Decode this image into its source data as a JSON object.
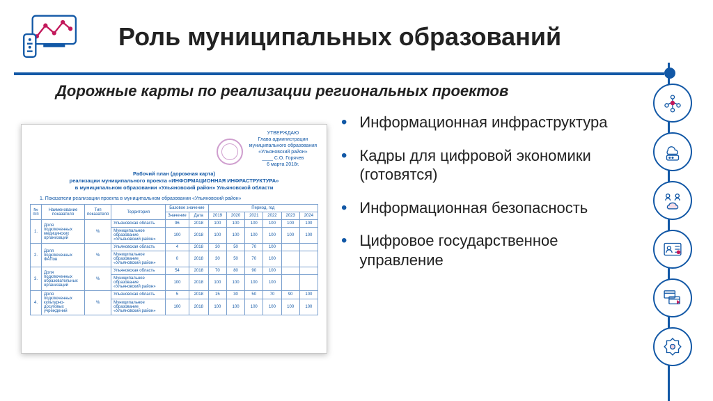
{
  "colors": {
    "accent": "#1258a6",
    "text": "#222222",
    "stamp": "#b05fae",
    "border": "#7aa0ce"
  },
  "title": "Роль муниципальных образований",
  "subtitle": "Дорожные карты по реализации региональных проектов",
  "bullets": [
    "Информационная инфраструктура",
    "Кадры для цифровой экономики (готовятся)",
    "Информационная безопасность",
    "Цифровое государственное управление"
  ],
  "document": {
    "approve": {
      "l1": "УТВЕРЖДАЮ",
      "l2": "Глава администрации",
      "l3": "муниципального образования",
      "l4": "«Ульяновский район»",
      "l5": "____ С.О. Горячев",
      "l6": "6 марта 2018г."
    },
    "doc_title_l1": "Рабочий план (дорожная карта)",
    "doc_title_l2": "реализации муниципального проекта «ИНФОРМАЦИОННАЯ ИНФРАСТРУКТУРА»",
    "doc_title_l3": "в муниципальном образовании «Ульяновский район» Ульяновской области",
    "section1": "1. Показатели реализации проекта в муниципальном образовании «Ульяновский район»",
    "headers": {
      "num": "№ п/п",
      "name": "Наименование показателя",
      "type": "Тип показателя",
      "terr": "Территория",
      "base": "Базовое значение",
      "base_val": "Значение",
      "base_date": "Дата",
      "period": "Период, год",
      "y2019": "2019",
      "y2020": "2020",
      "y2021": "2021",
      "y2022": "2022",
      "y2023": "2023",
      "y2024": "2024"
    },
    "rows": [
      {
        "n": "1.",
        "name": "Доля подключенных медицинских организаций",
        "type": "%",
        "terr": "Ульяновская область",
        "bv": "96",
        "bd": "2018",
        "v": [
          "100",
          "100",
          "100",
          "100",
          "100",
          "100"
        ]
      },
      {
        "n": "",
        "name": "",
        "type": "",
        "terr": "Муниципальное образование «Ульяновский район»",
        "bv": "100",
        "bd": "2018",
        "v": [
          "100",
          "100",
          "100",
          "100",
          "100",
          "100"
        ]
      },
      {
        "n": "2.",
        "name": "Доля подключенных ФАПов",
        "type": "%",
        "terr": "Ульяновская область",
        "bv": "4",
        "bd": "2018",
        "v": [
          "30",
          "50",
          "70",
          "100",
          "",
          ""
        ]
      },
      {
        "n": "",
        "name": "",
        "type": "",
        "terr": "Муниципальное образование «Ульяновский район»",
        "bv": "0",
        "bd": "2018",
        "v": [
          "30",
          "50",
          "70",
          "100",
          "",
          ""
        ]
      },
      {
        "n": "3.",
        "name": "Доля подключенных образовательных организаций",
        "type": "%",
        "terr": "Ульяновская область",
        "bv": "54",
        "bd": "2018",
        "v": [
          "70",
          "80",
          "90",
          "100",
          "",
          ""
        ]
      },
      {
        "n": "",
        "name": "",
        "type": "",
        "terr": "Муниципальное образование «Ульяновский район»",
        "bv": "100",
        "bd": "2018",
        "v": [
          "100",
          "100",
          "100",
          "100",
          "",
          ""
        ]
      },
      {
        "n": "4.",
        "name": "Доля подключенных культурно-досуговых учреждений",
        "type": "%",
        "terr": "Ульяновская область",
        "bv": "5",
        "bd": "2018",
        "v": [
          "15",
          "30",
          "50",
          "70",
          "90",
          "100"
        ]
      },
      {
        "n": "",
        "name": "",
        "type": "",
        "terr": "Муниципальное образование «Ульяновский район»",
        "bv": "100",
        "bd": "2018",
        "v": [
          "100",
          "100",
          "100",
          "100",
          "100",
          "100"
        ]
      }
    ]
  },
  "side_icons": [
    "network-icon",
    "cloud-system-icon",
    "people-cloud-icon",
    "id-card-icon",
    "browser-stack-icon",
    "emblem-icon"
  ]
}
